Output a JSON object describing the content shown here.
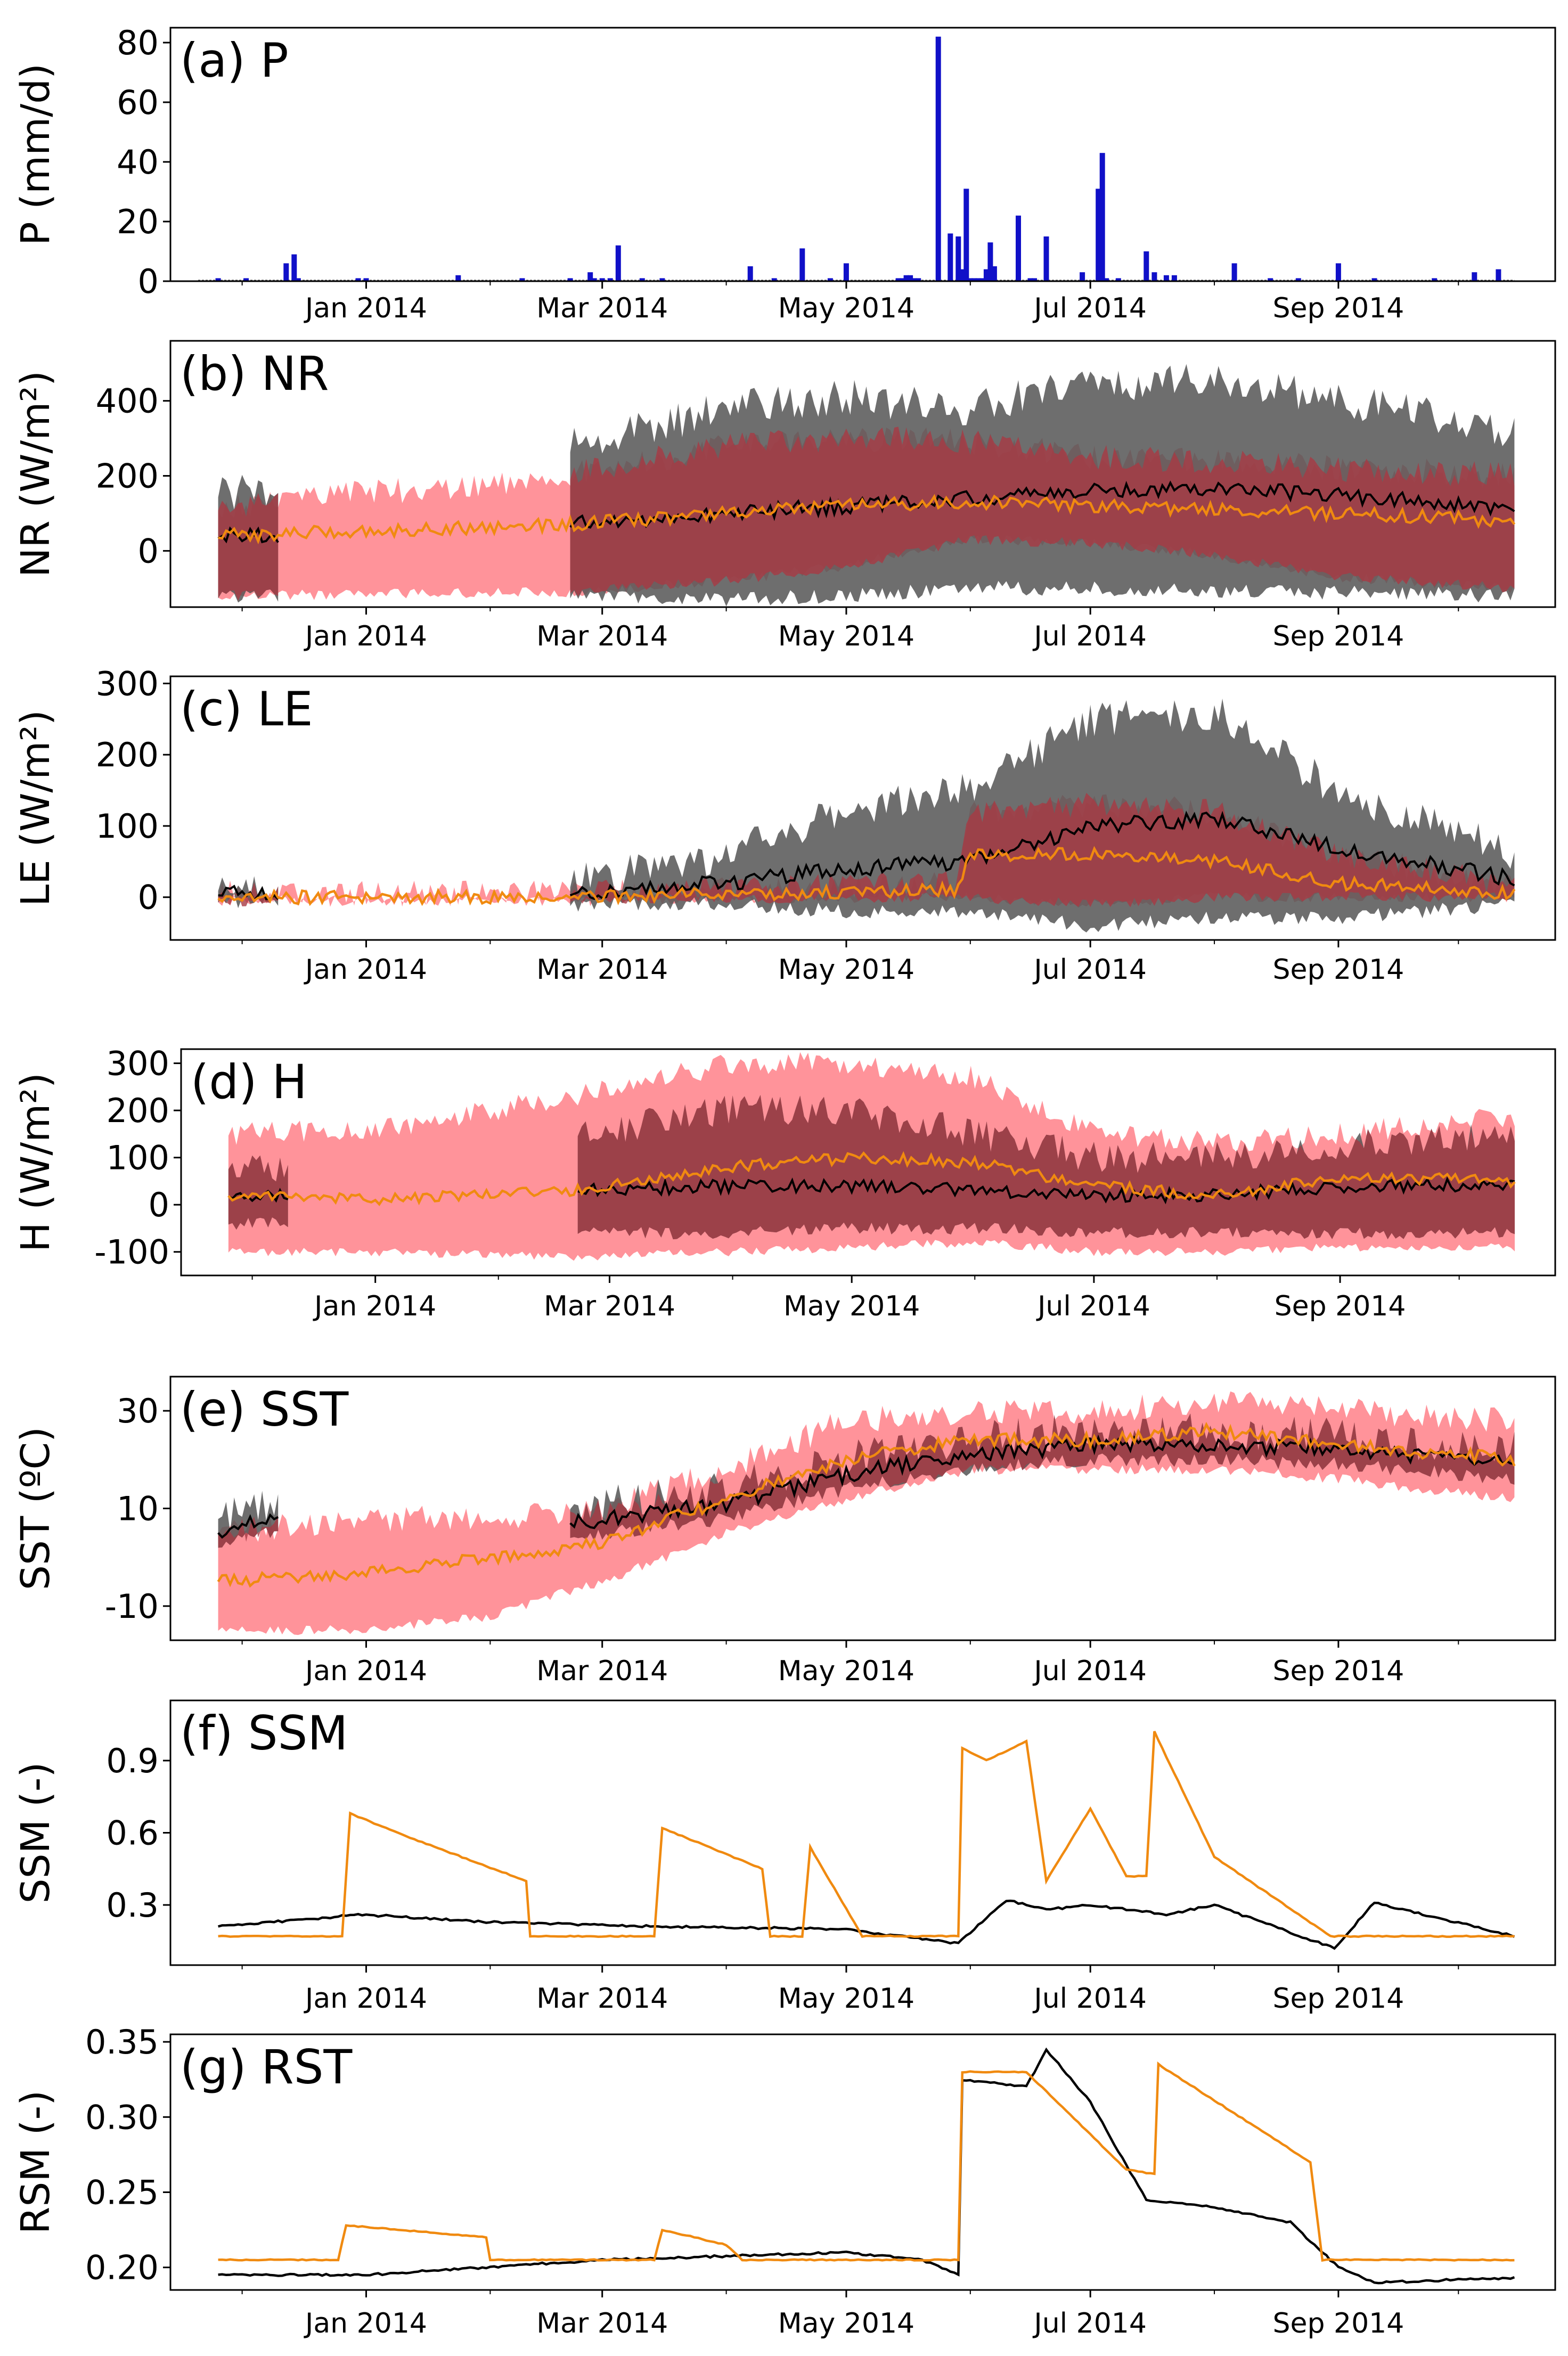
{
  "figure": {
    "x_tick_labels": [
      "Jan 2014",
      "Mar 2014",
      "May 2014",
      "Jul 2014",
      "Sep 2014"
    ],
    "x_tick_dates": [
      "2014-01-01",
      "2014-03-01",
      "2014-05-01",
      "2014-07-01",
      "2014-09-01"
    ],
    "x_range": [
      "2013-11-20",
      "2014-10-20"
    ],
    "colors": {
      "axis": "#000000",
      "precip_bar": "#1010c8",
      "obs_line": "#000000",
      "obs_band": "#555555",
      "model_line": "#f08a10",
      "model_band": "#ff8088",
      "overlap_band": "#a83a44"
    }
  },
  "chart_data": [
    {
      "id": "P",
      "type": "bar",
      "title": "(a) P",
      "ylabel": "P (mm/d)",
      "ylim": [
        0,
        85
      ],
      "yticks": [
        0,
        20,
        40,
        60,
        80
      ],
      "yticklabels": [
        "0",
        "20",
        "40",
        "60",
        "80"
      ],
      "series": [
        {
          "dates": [
            "2013-11-25",
            "2013-12-02",
            "2013-12-12",
            "2013-12-14",
            "2013-12-15",
            "2013-12-30",
            "2014-01-01",
            "2014-01-24",
            "2014-02-09",
            "2014-02-21",
            "2014-02-26",
            "2014-02-27",
            "2014-03-01",
            "2014-03-03",
            "2014-03-05",
            "2014-03-11",
            "2014-03-16",
            "2014-04-07",
            "2014-04-13",
            "2014-04-20",
            "2014-04-27",
            "2014-05-01",
            "2014-05-14",
            "2014-05-15",
            "2014-05-16",
            "2014-05-17",
            "2014-05-18",
            "2014-05-19",
            "2014-05-24",
            "2014-05-27",
            "2014-05-29",
            "2014-05-30",
            "2014-05-31",
            "2014-06-01",
            "2014-06-02",
            "2014-06-03",
            "2014-06-04",
            "2014-06-05",
            "2014-06-06",
            "2014-06-07",
            "2014-06-13",
            "2014-06-16",
            "2014-06-17",
            "2014-06-20",
            "2014-06-29",
            "2014-07-03",
            "2014-07-04",
            "2014-07-05",
            "2014-07-08",
            "2014-07-15",
            "2014-07-17",
            "2014-07-20",
            "2014-07-22",
            "2014-08-06",
            "2014-08-15",
            "2014-08-22",
            "2014-09-01",
            "2014-09-10",
            "2014-09-25",
            "2014-10-05",
            "2014-10-11"
          ],
          "values": [
            1,
            1,
            6,
            9,
            1,
            1,
            1,
            2,
            1,
            1,
            3,
            1,
            1,
            1,
            12,
            1,
            1,
            5,
            1,
            11,
            1,
            6,
            1,
            1,
            2,
            2,
            1,
            1,
            82,
            16,
            15,
            4,
            31,
            1,
            1,
            1,
            1,
            4,
            13,
            5,
            22,
            1,
            1,
            15,
            3,
            31,
            43,
            1,
            1,
            10,
            3,
            2,
            2,
            6,
            1,
            1,
            6,
            1,
            1,
            3,
            4
          ]
        }
      ]
    },
    {
      "id": "NR",
      "type": "line",
      "title": "(b) NR",
      "ylabel": "NR (W/m²)",
      "ylim": [
        -150,
        560
      ],
      "yticks": [
        0,
        200,
        400
      ],
      "yticklabels": [
        "0",
        "200",
        "400"
      ],
      "obs": {
        "segments": [
          {
            "dates": [
              "2013-11-25",
              "2013-12-10"
            ],
            "upper": [
              160,
              160
            ],
            "lower": [
              -120,
              -120
            ],
            "mean": [
              40,
              40
            ]
          },
          {
            "dates": [
              "2014-02-21",
              "2014-10-15"
            ],
            "upper": [
              360,
              380
            ],
            "lower": [
              -110,
              -120
            ],
            "mean": [
              80,
              110
            ]
          }
        ],
        "keypoints": {
          "dates": [
            "2014-02-21",
            "2014-04-01",
            "2014-05-01",
            "2014-06-01",
            "2014-07-01",
            "2014-08-01",
            "2014-09-01",
            "2014-10-15"
          ],
          "upper": [
            280,
            380,
            410,
            380,
            450,
            450,
            400,
            320
          ],
          "lower": [
            -120,
            -130,
            -120,
            -100,
            -100,
            -110,
            -110,
            -120
          ],
          "mean": [
            70,
            100,
            120,
            140,
            160,
            170,
            150,
            110
          ]
        }
      },
      "model": {
        "dates": [
          "2013-11-25",
          "2014-02-20",
          "2014-04-01",
          "2014-05-01",
          "2014-06-01",
          "2014-07-01",
          "2014-08-01",
          "2014-09-01",
          "2014-10-15"
        ],
        "upper": [
          120,
          200,
          280,
          300,
          290,
          250,
          240,
          220,
          200
        ],
        "lower": [
          -120,
          -110,
          -80,
          -40,
          30,
          20,
          -10,
          -70,
          -100
        ],
        "mean": [
          40,
          70,
          100,
          120,
          130,
          120,
          110,
          100,
          80
        ]
      }
    },
    {
      "id": "LE",
      "type": "line",
      "title": "(c) LE",
      "ylabel": "LE (W/m²)",
      "ylim": [
        -60,
        310
      ],
      "yticks": [
        0,
        100,
        200,
        300
      ],
      "yticklabels": [
        "0",
        "100",
        "200",
        "300"
      ],
      "obs": {
        "segments": [
          {
            "dates": [
              "2013-11-25",
              "2013-12-10"
            ],
            "upper": [
              15,
              15
            ],
            "lower": [
              -5,
              -5
            ],
            "mean": [
              5,
              5
            ]
          },
          {
            "dates": [
              "2014-02-21",
              "2014-10-15"
            ],
            "upper": [
              20,
              30
            ],
            "lower": [
              -10,
              -10
            ],
            "mean": [
              5,
              25
            ]
          }
        ],
        "keypoints": {
          "dates": [
            "2014-02-21",
            "2014-04-01",
            "2014-05-01",
            "2014-06-01",
            "2014-07-01",
            "2014-08-01",
            "2014-09-01",
            "2014-10-15"
          ],
          "upper": [
            20,
            60,
            120,
            150,
            250,
            260,
            150,
            60
          ],
          "lower": [
            -10,
            -10,
            -20,
            -20,
            -40,
            -30,
            -30,
            -10
          ],
          "mean": [
            5,
            20,
            40,
            50,
            100,
            110,
            70,
            25
          ]
        }
      },
      "model": {
        "dates": [
          "2013-11-25",
          "2014-02-20",
          "2014-05-29",
          "2014-06-01",
          "2014-07-01",
          "2014-08-01",
          "2014-09-01",
          "2014-10-15"
        ],
        "upper": [
          5,
          5,
          20,
          120,
          130,
          120,
          60,
          15
        ],
        "lower": [
          -5,
          -5,
          0,
          0,
          -10,
          0,
          0,
          0
        ],
        "mean": [
          0,
          0,
          10,
          60,
          60,
          50,
          20,
          5
        ]
      }
    },
    {
      "id": "H",
      "type": "line",
      "title": "(d) H",
      "ylabel": "H (W/m²)",
      "ylim": [
        -150,
        330
      ],
      "yticks": [
        -100,
        0,
        100,
        200,
        300
      ],
      "yticklabels": [
        "-100",
        "0",
        "100",
        "200",
        "300"
      ],
      "obs": {
        "segments": [
          {
            "dates": [
              "2013-11-25",
              "2013-12-10"
            ],
            "upper": [
              80,
              80
            ],
            "lower": [
              -40,
              -40
            ],
            "mean": [
              20,
              20
            ]
          },
          {
            "dates": [
              "2014-02-21",
              "2014-10-15"
            ],
            "upper": [
              150,
              150
            ],
            "lower": [
              -60,
              -60
            ],
            "mean": [
              30,
              40
            ]
          }
        ],
        "keypoints": {
          "dates": [
            "2014-02-21",
            "2014-04-01",
            "2014-05-01",
            "2014-06-01",
            "2014-07-01",
            "2014-08-01",
            "2014-09-01",
            "2014-10-15"
          ],
          "upper": [
            150,
            200,
            200,
            150,
            100,
            100,
            130,
            150
          ],
          "lower": [
            -60,
            -60,
            -50,
            -50,
            -60,
            -60,
            -60,
            -60
          ],
          "mean": [
            30,
            40,
            40,
            30,
            20,
            20,
            40,
            40
          ]
        }
      },
      "model": {
        "dates": [
          "2013-11-25",
          "2014-01-01",
          "2014-02-20",
          "2014-04-01",
          "2014-05-01",
          "2014-06-01",
          "2014-07-01",
          "2014-08-01",
          "2014-09-01",
          "2014-10-15"
        ],
        "upper": [
          150,
          160,
          230,
          300,
          300,
          270,
          150,
          130,
          150,
          190
        ],
        "lower": [
          -100,
          -100,
          -110,
          -100,
          -90,
          -80,
          -100,
          -100,
          -90,
          -90
        ],
        "mean": [
          20,
          10,
          30,
          80,
          100,
          90,
          40,
          20,
          60,
          50
        ]
      }
    },
    {
      "id": "SST",
      "type": "line",
      "title": "(e) SST",
      "ylabel": "SST (ºC)",
      "ylim": [
        -17,
        37
      ],
      "yticks": [
        -10,
        10,
        30
      ],
      "yticklabels": [
        "-10",
        "10",
        "30"
      ],
      "obs": {
        "segments": [
          {
            "dates": [
              "2013-11-25",
              "2013-12-10"
            ],
            "upper": [
              8,
              12
            ],
            "lower": [
              2,
              6
            ],
            "mean": [
              5,
              9
            ]
          },
          {
            "dates": [
              "2014-02-21",
              "2014-10-15"
            ],
            "upper": [
              10,
              22
            ],
            "lower": [
              4,
              16
            ],
            "mean": [
              7,
              19
            ]
          }
        ],
        "keypoints": {
          "dates": [
            "2014-02-21",
            "2014-04-01",
            "2014-05-01",
            "2014-06-01",
            "2014-07-01",
            "2014-08-01",
            "2014-09-01",
            "2014-10-15"
          ],
          "upper": [
            10,
            14,
            20,
            24,
            26,
            26,
            25,
            22
          ],
          "lower": [
            4,
            8,
            14,
            18,
            20,
            20,
            19,
            16
          ],
          "mean": [
            7,
            11,
            17,
            21,
            23,
            23,
            22,
            19
          ]
        }
      },
      "model": {
        "dates": [
          "2013-11-25",
          "2014-01-01",
          "2014-02-01",
          "2014-03-01",
          "2014-04-01",
          "2014-05-01",
          "2014-06-01",
          "2014-07-01",
          "2014-08-01",
          "2014-09-01",
          "2014-10-15"
        ],
        "upper": [
          5,
          8,
          8,
          10,
          18,
          28,
          30,
          30,
          32,
          30,
          28
        ],
        "lower": [
          -15,
          -15,
          -12,
          -5,
          5,
          12,
          18,
          18,
          18,
          16,
          12
        ],
        "mean": [
          -5,
          -3,
          0,
          3,
          12,
          20,
          24,
          24,
          26,
          23,
          20
        ]
      }
    },
    {
      "id": "SSM",
      "type": "line",
      "title": "(f) SSM",
      "ylabel": "SSM (-)",
      "ylim": [
        0.05,
        1.15
      ],
      "yticks": [
        0.3,
        0.6,
        0.9
      ],
      "yticklabels": [
        "0.3",
        "0.6",
        "0.9"
      ],
      "obs": {
        "dates": [
          "2013-11-25",
          "2013-12-31",
          "2014-01-31",
          "2014-03-15",
          "2014-04-30",
          "2014-05-29",
          "2014-06-10",
          "2014-06-20",
          "2014-07-01",
          "2014-07-20",
          "2014-08-01",
          "2014-08-31",
          "2014-09-10",
          "2014-10-15"
        ],
        "mean": [
          0.21,
          0.26,
          0.23,
          0.21,
          0.2,
          0.14,
          0.32,
          0.28,
          0.3,
          0.26,
          0.3,
          0.12,
          0.31,
          0.17
        ]
      },
      "model": {
        "dates": [
          "2013-11-25",
          "2013-12-26",
          "2013-12-28",
          "2014-01-15",
          "2014-02-10",
          "2014-02-11",
          "2014-03-14",
          "2014-03-16",
          "2014-04-10",
          "2014-04-12",
          "2014-04-20",
          "2014-04-22",
          "2014-05-05",
          "2014-05-29",
          "2014-05-30",
          "2014-06-05",
          "2014-06-15",
          "2014-06-20",
          "2014-07-01",
          "2014-07-10",
          "2014-07-15",
          "2014-07-17",
          "2014-08-01",
          "2014-08-30",
          "2014-10-15"
        ],
        "mean": [
          0.17,
          0.17,
          0.68,
          0.56,
          0.4,
          0.17,
          0.17,
          0.62,
          0.45,
          0.17,
          0.17,
          0.54,
          0.17,
          0.17,
          0.95,
          0.9,
          0.98,
          0.4,
          0.7,
          0.42,
          0.42,
          1.02,
          0.5,
          0.17,
          0.17
        ]
      }
    },
    {
      "id": "RSM",
      "type": "line",
      "title": "(g) RST",
      "ylabel": "RSM (-)",
      "ylim": [
        0.185,
        0.355
      ],
      "yticks": [
        0.2,
        0.25,
        0.3,
        0.35
      ],
      "yticklabels": [
        "0.20",
        "0.25",
        "0.30",
        "0.35"
      ],
      "obs": {
        "dates": [
          "2013-11-25",
          "2014-01-01",
          "2014-03-01",
          "2014-05-01",
          "2014-05-20",
          "2014-05-29",
          "2014-05-30",
          "2014-06-15",
          "2014-06-20",
          "2014-07-01",
          "2014-07-15",
          "2014-08-01",
          "2014-08-20",
          "2014-09-01",
          "2014-09-10",
          "2014-10-15"
        ],
        "mean": [
          0.195,
          0.195,
          0.205,
          0.21,
          0.205,
          0.195,
          0.325,
          0.32,
          0.345,
          0.31,
          0.245,
          0.24,
          0.23,
          0.2,
          0.19,
          0.193
        ]
      },
      "model": {
        "dates": [
          "2013-11-25",
          "2013-12-25",
          "2013-12-27",
          "2014-01-31",
          "2014-02-01",
          "2014-03-14",
          "2014-03-16",
          "2014-04-01",
          "2014-04-05",
          "2014-05-29",
          "2014-05-30",
          "2014-06-15",
          "2014-07-10",
          "2014-07-17",
          "2014-07-18",
          "2014-08-25",
          "2014-08-28",
          "2014-10-15"
        ],
        "mean": [
          0.205,
          0.205,
          0.228,
          0.22,
          0.205,
          0.205,
          0.225,
          0.215,
          0.205,
          0.205,
          0.33,
          0.33,
          0.265,
          0.262,
          0.335,
          0.27,
          0.205,
          0.205
        ]
      }
    }
  ]
}
